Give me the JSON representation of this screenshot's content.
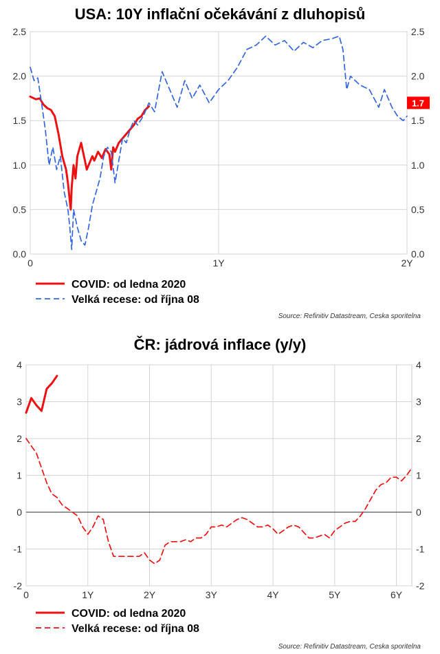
{
  "chart_data": [
    {
      "type": "line",
      "title": "USA: 10Y inflační očekávání z dluhopisů",
      "ylim": [
        0,
        2.5
      ],
      "y_ticks": [
        "0.0",
        "0.5",
        "1.0",
        "1.5",
        "2.0",
        "2.5"
      ],
      "y_tick_values": [
        0,
        0.5,
        1.0,
        1.5,
        2.0,
        2.5
      ],
      "xlim": [
        0,
        2
      ],
      "x_ticks": [
        "0",
        "1Y",
        "2Y"
      ],
      "x_tick_values": [
        0,
        1,
        2
      ],
      "last_value_label": "1.7",
      "last_value": 1.7,
      "last_value_color": "#ff0000",
      "series": [
        {
          "name": "COVID: od ledna 2020",
          "color": "#ee1111",
          "style": "solid",
          "x": [
            0,
            0.03,
            0.05,
            0.07,
            0.09,
            0.11,
            0.13,
            0.15,
            0.17,
            0.19,
            0.2,
            0.21,
            0.215,
            0.22,
            0.23,
            0.24,
            0.25,
            0.27,
            0.29,
            0.3,
            0.31,
            0.33,
            0.34,
            0.36,
            0.38,
            0.4,
            0.42,
            0.43,
            0.44,
            0.45,
            0.47,
            0.49,
            0.51,
            0.53,
            0.55,
            0.57,
            0.59,
            0.61,
            0.63
          ],
          "values": [
            1.77,
            1.74,
            1.75,
            1.68,
            1.64,
            1.62,
            1.55,
            1.35,
            1.1,
            0.95,
            0.8,
            0.6,
            0.5,
            0.75,
            1.0,
            0.85,
            1.1,
            1.25,
            1.05,
            0.95,
            1.0,
            1.1,
            1.05,
            1.15,
            1.08,
            1.18,
            1.12,
            0.95,
            1.2,
            1.15,
            1.25,
            1.3,
            1.35,
            1.4,
            1.45,
            1.52,
            1.55,
            1.62,
            1.66
          ]
        },
        {
          "name": "Velká recese: od října 08",
          "color": "#3366dd",
          "style": "dashed",
          "x": [
            0,
            0.02,
            0.04,
            0.06,
            0.08,
            0.1,
            0.12,
            0.14,
            0.16,
            0.18,
            0.2,
            0.21,
            0.22,
            0.23,
            0.25,
            0.27,
            0.29,
            0.31,
            0.33,
            0.35,
            0.37,
            0.39,
            0.41,
            0.43,
            0.45,
            0.47,
            0.49,
            0.51,
            0.53,
            0.55,
            0.57,
            0.6,
            0.63,
            0.66,
            0.7,
            0.74,
            0.78,
            0.82,
            0.86,
            0.9,
            0.95,
            1.0,
            1.05,
            1.1,
            1.15,
            1.2,
            1.25,
            1.3,
            1.35,
            1.4,
            1.45,
            1.5,
            1.55,
            1.6,
            1.64,
            1.66,
            1.68,
            1.7,
            1.75,
            1.8,
            1.85,
            1.88,
            1.9,
            1.92,
            1.95,
            1.98,
            2.0
          ],
          "values": [
            2.1,
            1.95,
            1.98,
            1.7,
            1.4,
            1.0,
            1.2,
            0.95,
            1.1,
            0.7,
            0.5,
            0.3,
            0.05,
            0.5,
            0.3,
            0.15,
            0.1,
            0.3,
            0.55,
            0.7,
            0.85,
            1.1,
            1.2,
            1.15,
            0.8,
            1.05,
            1.3,
            1.25,
            1.4,
            1.5,
            1.45,
            1.55,
            1.7,
            1.6,
            2.05,
            1.85,
            1.65,
            1.95,
            1.75,
            1.9,
            1.7,
            1.85,
            1.95,
            2.1,
            2.3,
            2.35,
            2.45,
            2.35,
            2.4,
            2.28,
            2.38,
            2.32,
            2.4,
            2.42,
            2.45,
            2.3,
            1.85,
            2.0,
            1.9,
            1.85,
            1.65,
            1.85,
            1.75,
            1.65,
            1.55,
            1.5,
            1.55
          ]
        }
      ],
      "source": "Source: Refinitiv Datastream, Ceska sporitelna"
    },
    {
      "type": "line",
      "title": "ČR: jádrová inflace (y/y)",
      "ylim": [
        -2,
        4
      ],
      "y_ticks": [
        "-2",
        "-1",
        "0",
        "1",
        "2",
        "3",
        "4"
      ],
      "y_tick_values": [
        -2,
        -1,
        0,
        1,
        2,
        3,
        4
      ],
      "xlim": [
        0,
        6.25
      ],
      "x_ticks": [
        "0",
        "1Y",
        "2Y",
        "3Y",
        "4Y",
        "5Y",
        "6Y"
      ],
      "x_tick_values": [
        0,
        1,
        2,
        3,
        4,
        5,
        6
      ],
      "series": [
        {
          "name": "COVID: od ledna 2020",
          "color": "#ee1111",
          "style": "solid",
          "x": [
            0,
            0.083,
            0.167,
            0.25,
            0.333,
            0.417,
            0.5
          ],
          "values": [
            2.7,
            3.1,
            2.9,
            2.75,
            3.35,
            3.5,
            3.7
          ]
        },
        {
          "name": "Velká recese: od října 08",
          "color": "#ee1111",
          "style": "dashed",
          "x": [
            0,
            0.083,
            0.167,
            0.25,
            0.333,
            0.417,
            0.5,
            0.583,
            0.667,
            0.75,
            0.833,
            0.917,
            1.0,
            1.083,
            1.167,
            1.25,
            1.333,
            1.417,
            1.5,
            1.583,
            1.667,
            1.75,
            1.833,
            1.917,
            2.0,
            2.083,
            2.167,
            2.25,
            2.333,
            2.417,
            2.5,
            2.583,
            2.667,
            2.75,
            2.833,
            2.917,
            3.0,
            3.083,
            3.167,
            3.25,
            3.333,
            3.417,
            3.5,
            3.583,
            3.667,
            3.75,
            3.833,
            3.917,
            4.0,
            4.083,
            4.167,
            4.25,
            4.333,
            4.417,
            4.5,
            4.583,
            4.667,
            4.75,
            4.833,
            4.917,
            5.0,
            5.083,
            5.167,
            5.25,
            5.333,
            5.417,
            5.5,
            5.583,
            5.667,
            5.75,
            5.833,
            5.917,
            6.0,
            6.083,
            6.167,
            6.25
          ],
          "values": [
            2.0,
            1.8,
            1.6,
            1.2,
            0.8,
            0.5,
            0.4,
            0.2,
            0.1,
            0.0,
            -0.1,
            -0.4,
            -0.6,
            -0.4,
            -0.1,
            -0.2,
            -0.8,
            -1.2,
            -1.2,
            -1.2,
            -1.2,
            -1.2,
            -1.2,
            -1.1,
            -1.3,
            -1.4,
            -1.3,
            -0.9,
            -0.8,
            -0.8,
            -0.8,
            -0.75,
            -0.8,
            -0.7,
            -0.7,
            -0.6,
            -0.4,
            -0.4,
            -0.35,
            -0.4,
            -0.3,
            -0.2,
            -0.15,
            -0.2,
            -0.3,
            -0.4,
            -0.4,
            -0.35,
            -0.45,
            -0.6,
            -0.5,
            -0.4,
            -0.35,
            -0.4,
            -0.55,
            -0.7,
            -0.7,
            -0.65,
            -0.6,
            -0.7,
            -0.5,
            -0.4,
            -0.3,
            -0.25,
            -0.25,
            -0.1,
            0.1,
            0.35,
            0.6,
            0.75,
            0.8,
            0.95,
            0.95,
            0.85,
            1.0,
            1.2
          ]
        }
      ],
      "source": "Source: Refinitiv Datastream, Ceska sporitelna"
    }
  ]
}
